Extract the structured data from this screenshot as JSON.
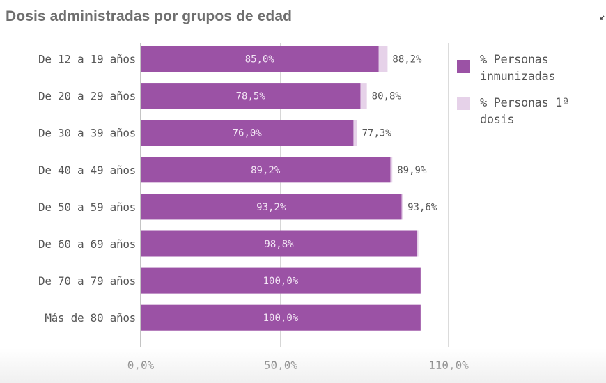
{
  "title": "Dosis administradas por grupos de edad",
  "colors": {
    "immunized": "#9b52a5",
    "first_dose": "#e6d2e9",
    "axis": "#b0b0b0",
    "grid": "#cfcfcf"
  },
  "chart_data": {
    "type": "bar",
    "orientation": "horizontal",
    "title": "Dosis administradas por grupos de edad",
    "categories": [
      "De 12 a 19 años",
      "De 20 a 29 años",
      "De 30 a 39 años",
      "De 40 a 49 años",
      "De 50 a 59 años",
      "De 60 a 69 años",
      "De 70 a 79 años",
      "Más de 80 años"
    ],
    "series": [
      {
        "name": "% Personas inmunizadas",
        "values": [
          85.0,
          78.5,
          76.0,
          89.2,
          93.2,
          98.8,
          100.0,
          100.0
        ],
        "labels": [
          "85,0%",
          "78,5%",
          "76,0%",
          "89,2%",
          "93,2%",
          "98,8%",
          "100,0%",
          "100,0%"
        ]
      },
      {
        "name": "% Personas 1ª dosis",
        "values": [
          88.2,
          80.8,
          77.3,
          89.9,
          93.6,
          99.2,
          100.0,
          100.0
        ],
        "labels": [
          "88,2%",
          "80,8%",
          "77,3%",
          "89,9%",
          "93,6%",
          "",
          "",
          ""
        ]
      }
    ],
    "xlim": [
      0,
      110
    ],
    "ticks": [
      0,
      50,
      110
    ],
    "tick_labels": [
      "0,0%",
      "50,0%",
      "110,0%"
    ],
    "legend_position": "right"
  },
  "legend": {
    "immunized_label": "% Personas inmunizadas",
    "first_dose_label": "% Personas 1ª dosis"
  }
}
